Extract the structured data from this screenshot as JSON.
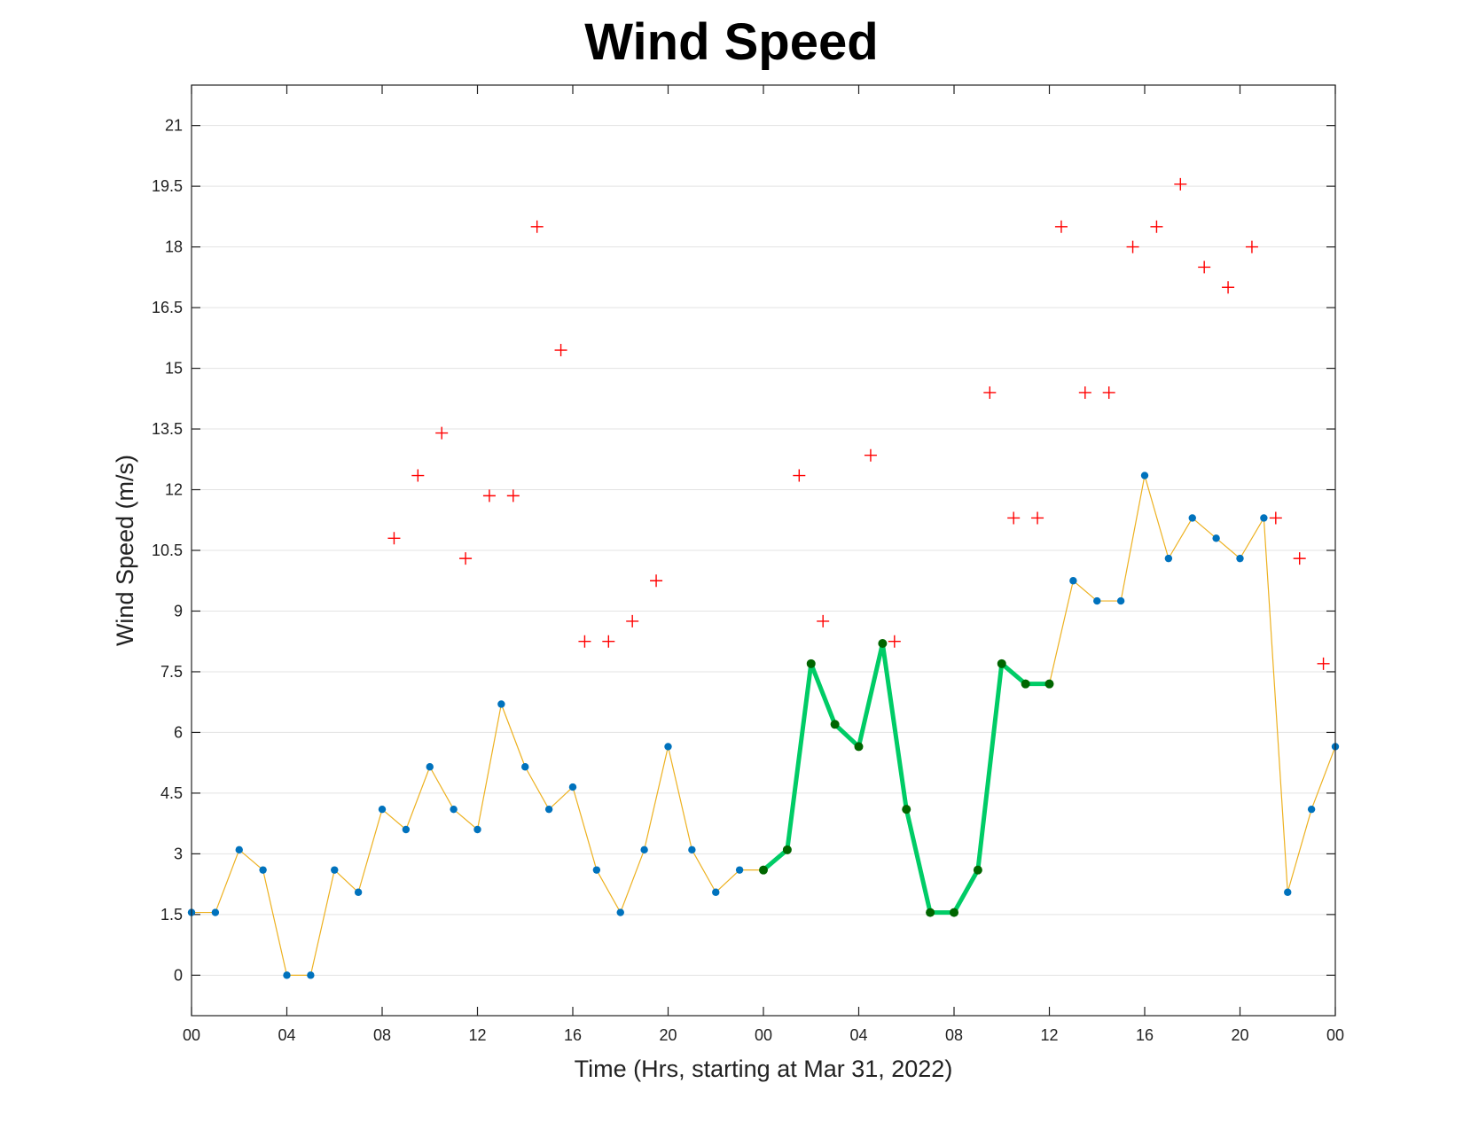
{
  "chart_data": {
    "type": "line",
    "title": "Wind Speed",
    "xlabel": "Time (Hrs, starting at Mar 31, 2022)",
    "ylabel": "Wind Speed (m/s)",
    "xlim": [
      0,
      48
    ],
    "ylim": [
      -1,
      22
    ],
    "grid": "horizontal",
    "x_ticks": [
      {
        "x": 0,
        "label": "00"
      },
      {
        "x": 4,
        "label": "04"
      },
      {
        "x": 8,
        "label": "08"
      },
      {
        "x": 12,
        "label": "12"
      },
      {
        "x": 16,
        "label": "16"
      },
      {
        "x": 20,
        "label": "20"
      },
      {
        "x": 24,
        "label": "00"
      },
      {
        "x": 28,
        "label": "04"
      },
      {
        "x": 32,
        "label": "08"
      },
      {
        "x": 36,
        "label": "12"
      },
      {
        "x": 40,
        "label": "16"
      },
      {
        "x": 44,
        "label": "20"
      },
      {
        "x": 48,
        "label": "00"
      }
    ],
    "y_ticks": [
      {
        "y": 0,
        "label": "0"
      },
      {
        "y": 1.5,
        "label": "1.5"
      },
      {
        "y": 3,
        "label": "3"
      },
      {
        "y": 4.5,
        "label": "4.5"
      },
      {
        "y": 6,
        "label": "6"
      },
      {
        "y": 7.5,
        "label": "7.5"
      },
      {
        "y": 9,
        "label": "9"
      },
      {
        "y": 10.5,
        "label": "10.5"
      },
      {
        "y": 12,
        "label": "12"
      },
      {
        "y": 13.5,
        "label": "13.5"
      },
      {
        "y": 15,
        "label": "15"
      },
      {
        "y": 16.5,
        "label": "16.5"
      },
      {
        "y": 18,
        "label": "18"
      },
      {
        "y": 19.5,
        "label": "19.5"
      },
      {
        "y": 21,
        "label": "21"
      }
    ],
    "series": [
      {
        "style": "line-with-dots",
        "line_color": "#EDB120",
        "marker_color": "#0072BD",
        "x": [
          0,
          1,
          2,
          3,
          4,
          5,
          6,
          7,
          8,
          9,
          10,
          11,
          12,
          13,
          14,
          15,
          16,
          17,
          18,
          19,
          20,
          21,
          22,
          23,
          24,
          25,
          26,
          27,
          28,
          29,
          30,
          31,
          32,
          33,
          34,
          35,
          36,
          37,
          38,
          39,
          40,
          41,
          42,
          43,
          44,
          45,
          46,
          47,
          48
        ],
        "y": [
          1.55,
          1.55,
          3.1,
          2.6,
          0,
          0,
          2.6,
          2.05,
          4.1,
          3.6,
          5.15,
          4.1,
          3.6,
          6.7,
          5.15,
          4.1,
          4.65,
          2.6,
          1.55,
          3.1,
          5.65,
          3.1,
          2.05,
          2.6,
          2.6,
          3.1,
          7.7,
          6.2,
          5.65,
          8.2,
          4.1,
          1.55,
          1.55,
          2.6,
          7.7,
          7.2,
          7.2,
          9.75,
          9.25,
          9.25,
          12.35,
          10.3,
          11.3,
          10.8,
          10.3,
          11.3,
          2.05,
          4.1,
          5.65
        ]
      },
      {
        "style": "highlight",
        "line_color": "#00CC66",
        "marker_color": "#006600",
        "x": [
          24,
          25,
          26,
          27,
          28,
          29,
          30,
          31,
          32,
          33,
          34,
          35,
          36
        ],
        "y": [
          2.6,
          3.1,
          7.7,
          6.2,
          5.65,
          8.2,
          4.1,
          1.55,
          1.55,
          2.6,
          7.7,
          7.2,
          7.2
        ]
      },
      {
        "style": "plus-markers",
        "marker_color": "#FF0000",
        "x": [
          8.5,
          9.5,
          10.5,
          11.5,
          12.5,
          13.5,
          14.5,
          15.5,
          16.5,
          17.5,
          18.5,
          19.5,
          25.5,
          26.5,
          28.5,
          29.5,
          33.5,
          34.5,
          35.5,
          36.5,
          37.5,
          38.5,
          39.5,
          40.5,
          41.5,
          42.5,
          43.5,
          44.5,
          45.5,
          46.5,
          47.5
        ],
        "y": [
          10.8,
          12.35,
          13.4,
          10.3,
          11.85,
          11.85,
          18.5,
          15.45,
          8.25,
          8.25,
          8.75,
          9.75,
          12.35,
          8.75,
          12.85,
          8.25,
          14.4,
          11.3,
          11.3,
          18.5,
          14.4,
          14.4,
          18,
          18.5,
          19.55,
          17.5,
          17,
          18,
          11.3,
          10.3,
          7.7
        ]
      }
    ]
  }
}
